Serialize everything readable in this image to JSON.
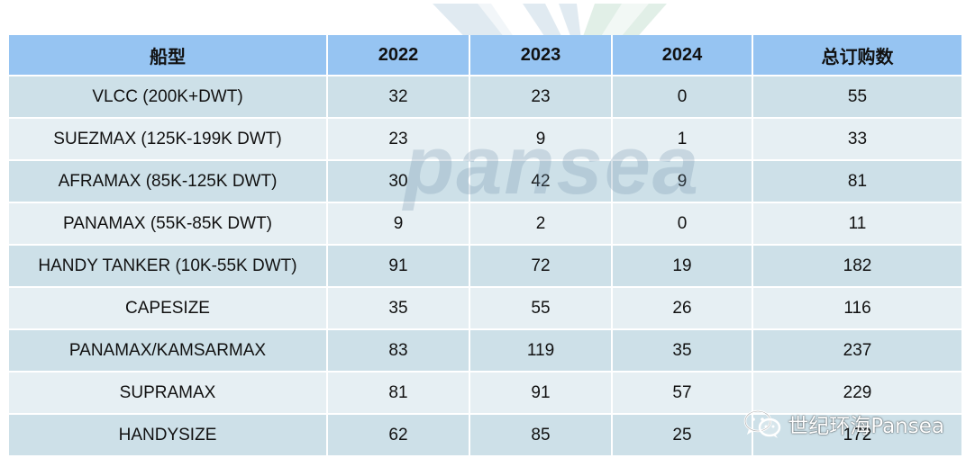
{
  "table": {
    "headers": [
      "船型",
      "2022",
      "2023",
      "2024",
      "总订购数"
    ],
    "rows": [
      [
        "VLCC (200K+DWT)",
        "32",
        "23",
        "0",
        "55"
      ],
      [
        "SUEZMAX (125K-199K DWT)",
        "23",
        "9",
        "1",
        "33"
      ],
      [
        "AFRAMAX (85K-125K DWT)",
        "30",
        "42",
        "9",
        "81"
      ],
      [
        "PANAMAX (55K-85K DWT)",
        "9",
        "2",
        "0",
        "11"
      ],
      [
        "HANDY TANKER (10K-55K DWT)",
        "91",
        "72",
        "19",
        "182"
      ],
      [
        "CAPESIZE",
        "35",
        "55",
        "26",
        "116"
      ],
      [
        "PANAMAX/KAMSARMAX",
        "83",
        "119",
        "35",
        "237"
      ],
      [
        "SUPRAMAX",
        "81",
        "91",
        "57",
        "229"
      ],
      [
        "HANDYSIZE",
        "62",
        "85",
        "25",
        "172"
      ]
    ]
  },
  "watermark": {
    "text": "pansea"
  },
  "footer": {
    "brand": "世纪环海Pansea",
    "icon": "wechat-icon"
  },
  "colors": {
    "header_bg": "#96c4f2",
    "row_odd": "#cde0e8",
    "row_even": "#e6eff3"
  }
}
